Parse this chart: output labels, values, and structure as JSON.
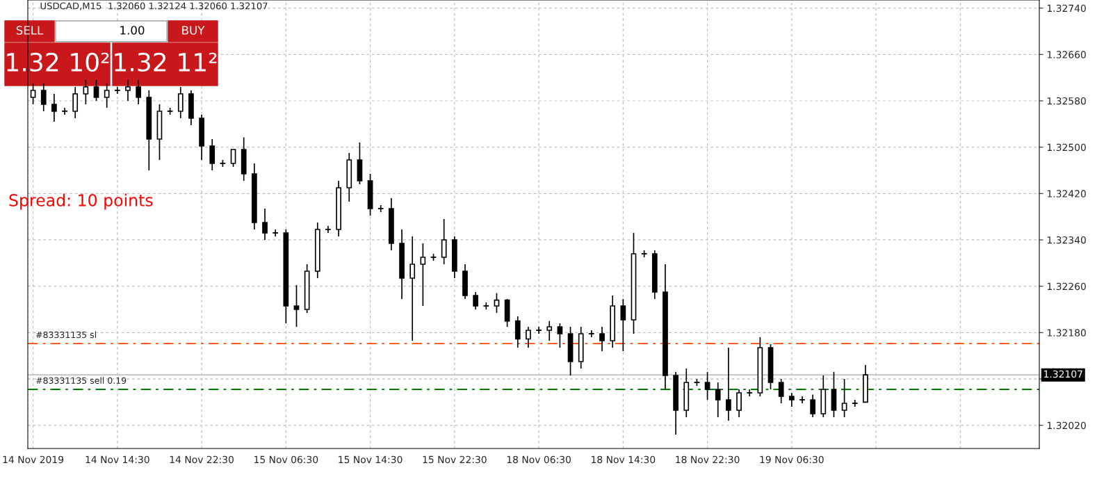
{
  "chart_data": {
    "type": "candlestick",
    "title": "USDCAD,M15  1.32060 1.32124 1.32060 1.32107",
    "categories": [
      "14 Nov 2019",
      null,
      null,
      null,
      null,
      null,
      null,
      null,
      "14 Nov 14:30",
      null,
      null,
      null,
      null,
      null,
      null,
      null,
      "14 Nov 22:30",
      null,
      null,
      null,
      null,
      null,
      null,
      null,
      "15 Nov 06:30",
      null,
      null,
      null,
      null,
      null,
      null,
      null,
      "15 Nov 14:30",
      null,
      null,
      null,
      null,
      null,
      null,
      null,
      "15 Nov 22:30",
      null,
      null,
      null,
      null,
      null,
      null,
      null,
      "18 Nov 06:30",
      null,
      null,
      null,
      null,
      null,
      null,
      null,
      "18 Nov 14:30",
      null,
      null,
      null,
      null,
      null,
      null,
      null,
      "18 Nov 22:30",
      null,
      null,
      null,
      null,
      null,
      null,
      null,
      "19 Nov 06:30",
      null,
      null,
      null,
      null,
      null,
      null,
      null,
      null,
      null,
      null,
      null,
      null,
      null,
      null,
      null,
      null,
      null,
      null,
      null,
      null,
      null,
      null,
      null
    ],
    "ohlc": [
      [
        1.32586,
        1.3261,
        1.32574,
        1.32598
      ],
      [
        1.32598,
        1.3261,
        1.32562,
        1.32574
      ],
      [
        1.32574,
        1.32592,
        1.32544,
        1.32562
      ],
      [
        1.32562,
        1.32568,
        1.32556,
        1.32562
      ],
      [
        1.32562,
        1.32604,
        1.3255,
        1.32592
      ],
      [
        1.32592,
        1.32616,
        1.32574,
        1.32604
      ],
      [
        1.32604,
        1.32616,
        1.3258,
        1.32586
      ],
      [
        1.32586,
        1.3261,
        1.32568,
        1.32598
      ],
      [
        1.32598,
        1.32604,
        1.32592,
        1.32598
      ],
      [
        1.32598,
        1.32616,
        1.3258,
        1.32604
      ],
      [
        1.32604,
        1.32616,
        1.32574,
        1.32586
      ],
      [
        1.32586,
        1.32598,
        1.3246,
        1.32514
      ],
      [
        1.32514,
        1.32574,
        1.32478,
        1.32562
      ],
      [
        1.32562,
        1.32568,
        1.32556,
        1.32562
      ],
      [
        1.32562,
        1.32604,
        1.3255,
        1.32592
      ],
      [
        1.32592,
        1.32598,
        1.32538,
        1.3255
      ],
      [
        1.3255,
        1.32556,
        1.32478,
        1.32502
      ],
      [
        1.32502,
        1.32514,
        1.3246,
        1.32472
      ],
      [
        1.32472,
        1.32478,
        1.32466,
        1.32472
      ],
      [
        1.32472,
        1.32496,
        1.32466,
        1.32496
      ],
      [
        1.32496,
        1.32517,
        1.32442,
        1.32454
      ],
      [
        1.32454,
        1.32472,
        1.32358,
        1.3237
      ],
      [
        1.3237,
        1.32394,
        1.3234,
        1.32352
      ],
      [
        1.32352,
        1.32358,
        1.32346,
        1.32352
      ],
      [
        1.32352,
        1.32358,
        1.32196,
        1.32226
      ],
      [
        1.32226,
        1.32262,
        1.3219,
        1.3222
      ],
      [
        1.3222,
        1.32298,
        1.32214,
        1.32286
      ],
      [
        1.32286,
        1.3237,
        1.32274,
        1.32358
      ],
      [
        1.32358,
        1.32364,
        1.32352,
        1.32358
      ],
      [
        1.32358,
        1.32442,
        1.32346,
        1.3243
      ],
      [
        1.3243,
        1.3249,
        1.32406,
        1.32478
      ],
      [
        1.32478,
        1.32508,
        1.32436,
        1.32442
      ],
      [
        1.32442,
        1.32454,
        1.32382,
        1.32394
      ],
      [
        1.32394,
        1.324,
        1.32388,
        1.32394
      ],
      [
        1.32394,
        1.32412,
        1.32322,
        1.32334
      ],
      [
        1.32334,
        1.32358,
        1.32238,
        1.32274
      ],
      [
        1.32274,
        1.32346,
        1.32166,
        1.32298
      ],
      [
        1.32298,
        1.32334,
        1.32226,
        1.3231
      ],
      [
        1.3231,
        1.32316,
        1.32304,
        1.3231
      ],
      [
        1.3231,
        1.32376,
        1.32298,
        1.3234
      ],
      [
        1.3234,
        1.32346,
        1.32274,
        1.32286
      ],
      [
        1.32286,
        1.32298,
        1.32238,
        1.32244
      ],
      [
        1.32244,
        1.3225,
        1.3222,
        1.32226
      ],
      [
        1.32226,
        1.32232,
        1.3222,
        1.32226
      ],
      [
        1.32226,
        1.32248,
        1.32214,
        1.32236
      ],
      [
        1.32236,
        1.32238,
        1.3219,
        1.322
      ],
      [
        1.322,
        1.32208,
        1.32154,
        1.32169
      ],
      [
        1.32169,
        1.3219,
        1.32154,
        1.32184
      ],
      [
        1.32184,
        1.3219,
        1.32178,
        1.32184
      ],
      [
        1.32184,
        1.322,
        1.32166,
        1.3219
      ],
      [
        1.3219,
        1.32196,
        1.32154,
        1.32178
      ],
      [
        1.32178,
        1.3219,
        1.32106,
        1.3213
      ],
      [
        1.3213,
        1.3219,
        1.32118,
        1.32178
      ],
      [
        1.32178,
        1.32184,
        1.32172,
        1.32178
      ],
      [
        1.32178,
        1.3219,
        1.32148,
        1.32166
      ],
      [
        1.32166,
        1.32244,
        1.32154,
        1.32226
      ],
      [
        1.32226,
        1.32238,
        1.32148,
        1.32202
      ],
      [
        1.32202,
        1.32352,
        1.32178,
        1.32316
      ],
      [
        1.32316,
        1.32322,
        1.3231,
        1.32316
      ],
      [
        1.32316,
        1.32322,
        1.32238,
        1.3225
      ],
      [
        1.3225,
        1.32298,
        1.32082,
        1.32106
      ],
      [
        1.32106,
        1.32112,
        1.32004,
        1.32046
      ],
      [
        1.32046,
        1.32118,
        1.32034,
        1.32094
      ],
      [
        1.32094,
        1.321,
        1.32088,
        1.32094
      ],
      [
        1.32094,
        1.32112,
        1.32064,
        1.32082
      ],
      [
        1.32082,
        1.32094,
        1.32034,
        1.32064
      ],
      [
        1.32064,
        1.32154,
        1.32028,
        1.32046
      ],
      [
        1.32046,
        1.32082,
        1.32034,
        1.32076
      ],
      [
        1.32076,
        1.32082,
        1.3207,
        1.32076
      ],
      [
        1.32076,
        1.32172,
        1.3207,
        1.32154
      ],
      [
        1.32154,
        1.3216,
        1.32082,
        1.32094
      ],
      [
        1.32094,
        1.321,
        1.32058,
        1.3207
      ],
      [
        1.3207,
        1.32076,
        1.32052,
        1.32064
      ],
      [
        1.32064,
        1.3207,
        1.32058,
        1.32064
      ],
      [
        1.32064,
        1.32073,
        1.32034,
        1.3204
      ],
      [
        1.3204,
        1.32106,
        1.32034,
        1.32082
      ],
      [
        1.32082,
        1.32112,
        1.32034,
        1.32046
      ],
      [
        1.32046,
        1.321,
        1.32034,
        1.32058
      ],
      [
        1.32058,
        1.32064,
        1.32052,
        1.32058
      ],
      [
        1.3206,
        1.32124,
        1.3206,
        1.32107
      ],
      null,
      null,
      null,
      null,
      null,
      null,
      null,
      null,
      null,
      null,
      null,
      null,
      null,
      null,
      null,
      null
    ],
    "ylim": [
      1.3198,
      1.32754
    ],
    "yticks": [
      {
        "value": 1.3202,
        "label": "1.32020"
      },
      {
        "value": 1.321,
        "label": null
      },
      {
        "value": 1.3218,
        "label": "1.32180"
      },
      {
        "value": 1.3226,
        "label": "1.32260"
      },
      {
        "value": 1.3234,
        "label": "1.32340"
      },
      {
        "value": 1.3242,
        "label": "1.32420"
      },
      {
        "value": 1.325,
        "label": "1.32500"
      },
      {
        "value": 1.3258,
        "label": "1.32580"
      },
      {
        "value": 1.3266,
        "label": "1.32660"
      },
      {
        "value": 1.3274,
        "label": "1.32740"
      }
    ],
    "grid": true,
    "ref_lines": [
      {
        "axis": "y",
        "value": 1.32161,
        "label": "#83331135 sl",
        "color": "#ff4500",
        "line_style": "dashed"
      },
      {
        "axis": "y",
        "value": 1.32082,
        "label": "#83331135 sell 0.19",
        "color": "#008000",
        "line_style": "dashed"
      },
      {
        "axis": "y",
        "value": 1.32107,
        "label": "1.32107",
        "color": "#c0c0c0",
        "line_style": "solid"
      }
    ],
    "annotations": [
      "SELL",
      "1.00",
      "BUY",
      "1.32 10²",
      "1.32 11²",
      "Spread: 10 points"
    ]
  }
}
